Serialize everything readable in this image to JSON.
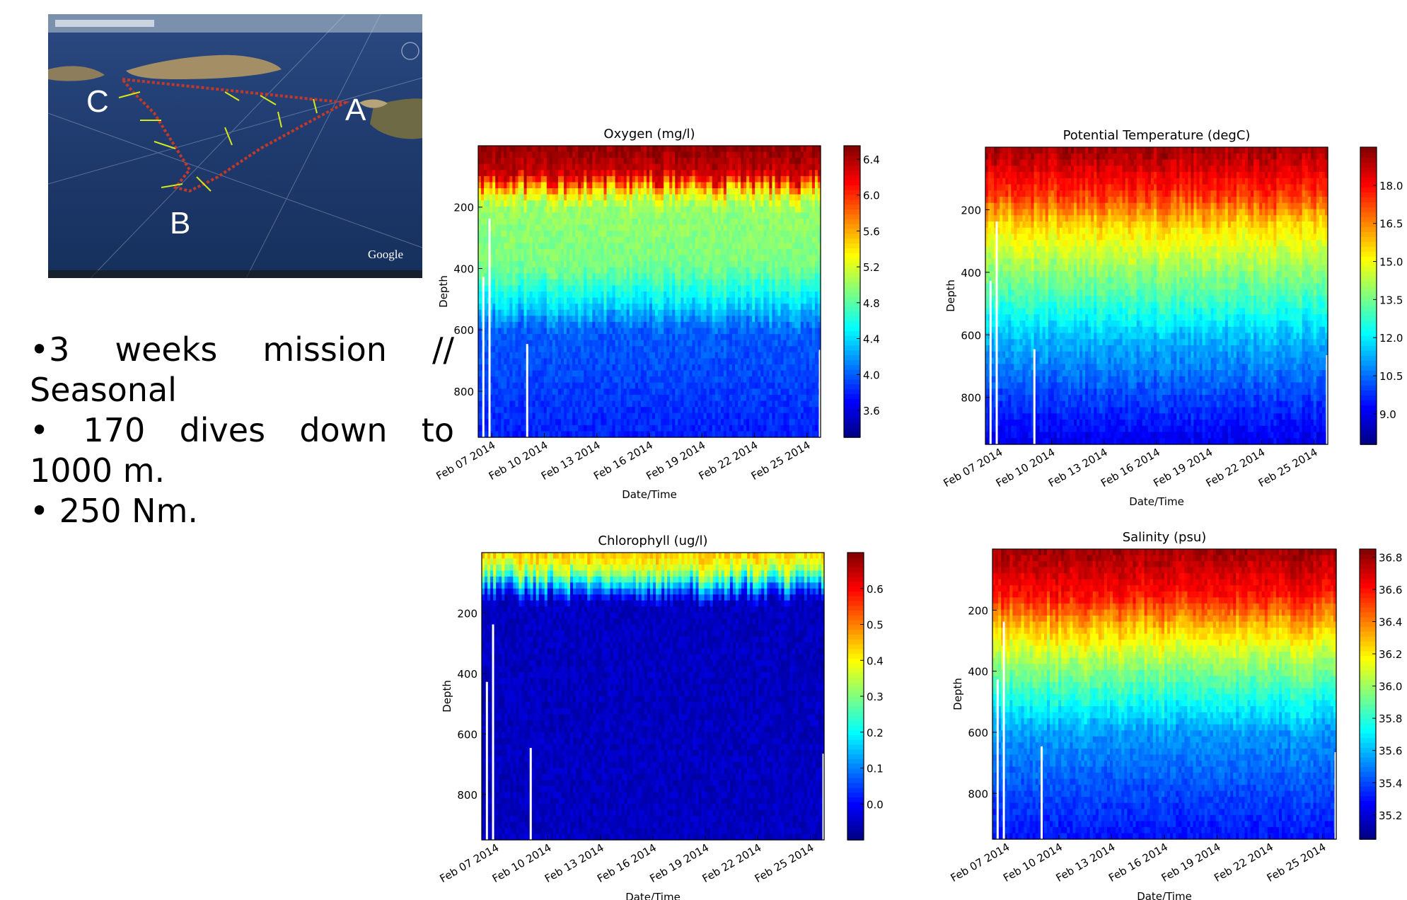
{
  "map": {
    "markers": [
      "A",
      "B",
      "C"
    ],
    "logo": "Google"
  },
  "bullets": [
    [
      "•3",
      "weeks",
      "mission",
      "//"
    ],
    [
      "Seasonal"
    ],
    [
      "•",
      "170",
      "dives",
      "down",
      "to"
    ],
    [
      "1000 m."
    ],
    [
      "• 250 Nm."
    ]
  ],
  "colors": {
    "jet_low": "#00007f",
    "jet_high": "#7f0000"
  },
  "chart_data": [
    {
      "type": "heatmap",
      "title": "Oxygen (mg/l)",
      "xlabel": "Date/Time",
      "ylabel": "Depth",
      "x_ticks": [
        "Feb 07 2014",
        "Feb 10 2014",
        "Feb 13 2014",
        "Feb 16 2014",
        "Feb 19 2014",
        "Feb 22 2014",
        "Feb 25 2014"
      ],
      "y_ticks": [
        200,
        400,
        600,
        800
      ],
      "y_range": [
        0,
        950
      ],
      "colorbar_ticks": [
        "3.6",
        "4.0",
        "4.4",
        "4.8",
        "5.2",
        "5.6",
        "6.0",
        "6.4"
      ],
      "colorbar_range": [
        3.3,
        6.55
      ],
      "profile": [
        [
          0,
          6.5
        ],
        [
          100,
          6.3
        ],
        [
          150,
          5.4
        ],
        [
          200,
          5.0
        ],
        [
          400,
          4.9
        ],
        [
          500,
          4.5
        ],
        [
          600,
          4.0
        ],
        [
          800,
          3.9
        ],
        [
          950,
          3.8
        ]
      ]
    },
    {
      "type": "heatmap",
      "title": "Potential Temperature (degC)",
      "xlabel": "Date/Time",
      "ylabel": "Depth",
      "x_ticks": [
        "Feb 07 2014",
        "Feb 10 2014",
        "Feb 13 2014",
        "Feb 16 2014",
        "Feb 19 2014",
        "Feb 22 2014",
        "Feb 25 2014"
      ],
      "y_ticks": [
        200,
        400,
        600,
        800
      ],
      "y_range": [
        0,
        950
      ],
      "colorbar_ticks": [
        "9.0",
        "10.5",
        "12.0",
        "13.5",
        "15.0",
        "16.5",
        "18.0"
      ],
      "colorbar_range": [
        7.8,
        19.5
      ],
      "profile": [
        [
          0,
          19.2
        ],
        [
          150,
          17.5
        ],
        [
          250,
          15.5
        ],
        [
          400,
          13.8
        ],
        [
          500,
          12.8
        ],
        [
          600,
          11.5
        ],
        [
          800,
          10.0
        ],
        [
          950,
          9.0
        ]
      ]
    },
    {
      "type": "heatmap",
      "title": "Chlorophyll (ug/l)",
      "xlabel": "Date/Time",
      "ylabel": "Depth",
      "x_ticks": [
        "Feb 07 2014",
        "Feb 10 2014",
        "Feb 13 2014",
        "Feb 16 2014",
        "Feb 19 2014",
        "Feb 22 2014",
        "Feb 25 2014"
      ],
      "y_ticks": [
        200,
        400,
        600,
        800
      ],
      "y_range": [
        0,
        950
      ],
      "colorbar_ticks": [
        "0.0",
        "0.1",
        "0.2",
        "0.3",
        "0.4",
        "0.5",
        "0.6"
      ],
      "colorbar_range": [
        -0.1,
        0.7
      ],
      "profile": [
        [
          0,
          0.45
        ],
        [
          60,
          0.35
        ],
        [
          120,
          0.1
        ],
        [
          160,
          -0.05
        ],
        [
          950,
          -0.05
        ]
      ]
    },
    {
      "type": "heatmap",
      "title": "Salinity (psu)",
      "xlabel": "Date/Time",
      "ylabel": "Depth",
      "x_ticks": [
        "Feb 07 2014",
        "Feb 10 2014",
        "Feb 13 2014",
        "Feb 16 2014",
        "Feb 19 2014",
        "Feb 22 2014",
        "Feb 25 2014"
      ],
      "y_ticks": [
        200,
        400,
        600,
        800
      ],
      "y_range": [
        0,
        950
      ],
      "colorbar_ticks": [
        "35.2",
        "35.4",
        "35.6",
        "35.8",
        "36.0",
        "36.2",
        "36.4",
        "36.6",
        "36.8"
      ],
      "colorbar_range": [
        35.05,
        36.85
      ],
      "profile": [
        [
          0,
          36.8
        ],
        [
          150,
          36.6
        ],
        [
          250,
          36.3
        ],
        [
          350,
          36.05
        ],
        [
          500,
          35.75
        ],
        [
          600,
          35.55
        ],
        [
          800,
          35.4
        ],
        [
          950,
          35.3
        ]
      ]
    }
  ]
}
